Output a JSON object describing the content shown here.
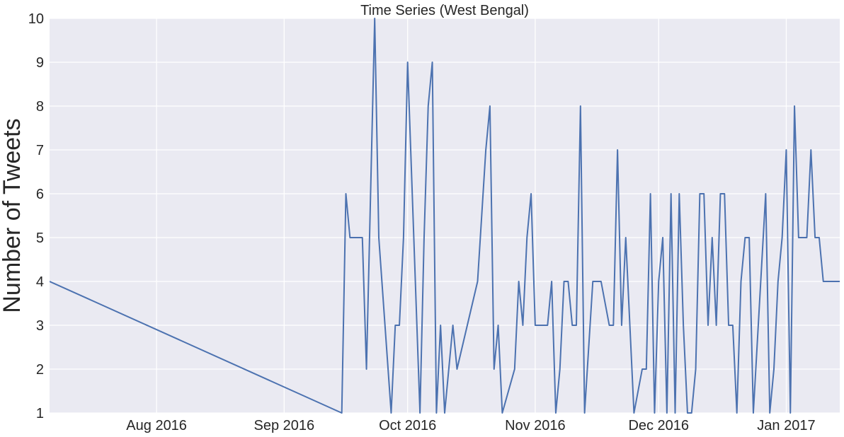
{
  "chart_data": {
    "type": "line",
    "title": "Time Series (West Bengal)",
    "xlabel": "",
    "ylabel": "Number of Tweets",
    "ylim": [
      1,
      10
    ],
    "xlim": [
      "2016-07-06",
      "2017-01-14"
    ],
    "y_ticks": [
      1,
      2,
      3,
      4,
      5,
      6,
      7,
      8,
      9,
      10
    ],
    "x_ticks": [
      {
        "date": "2016-08-01",
        "label": "Aug 2016"
      },
      {
        "date": "2016-09-01",
        "label": "Sep 2016"
      },
      {
        "date": "2016-10-01",
        "label": "Oct 2016"
      },
      {
        "date": "2016-11-01",
        "label": "Nov 2016"
      },
      {
        "date": "2016-12-01",
        "label": "Dec 2016"
      },
      {
        "date": "2017-01-01",
        "label": "Jan 2017"
      }
    ],
    "grid": true,
    "colors": {
      "line": "#4c72b0",
      "plot_bg": "#eaeaf2",
      "grid": "#ffffff"
    },
    "series": [
      {
        "x": [
          "2016-07-06",
          "2016-09-15",
          "2016-09-16",
          "2016-09-17",
          "2016-09-20",
          "2016-09-21",
          "2016-09-23",
          "2016-09-24",
          "2016-09-27",
          "2016-09-28",
          "2016-09-29",
          "2016-09-30",
          "2016-10-01",
          "2016-10-04",
          "2016-10-05",
          "2016-10-06",
          "2016-10-07",
          "2016-10-08",
          "2016-10-09",
          "2016-10-10",
          "2016-10-11",
          "2016-10-12",
          "2016-10-13",
          "2016-10-18",
          "2016-10-20",
          "2016-10-21",
          "2016-10-22",
          "2016-10-23",
          "2016-10-24",
          "2016-10-27",
          "2016-10-28",
          "2016-10-29",
          "2016-10-30",
          "2016-10-31",
          "2016-11-01",
          "2016-11-03",
          "2016-11-04",
          "2016-11-05",
          "2016-11-06",
          "2016-11-07",
          "2016-11-08",
          "2016-11-09",
          "2016-11-10",
          "2016-11-11",
          "2016-11-12",
          "2016-11-13",
          "2016-11-15",
          "2016-11-16",
          "2016-11-17",
          "2016-11-19",
          "2016-11-20",
          "2016-11-21",
          "2016-11-22",
          "2016-11-23",
          "2016-11-25",
          "2016-11-27",
          "2016-11-28",
          "2016-11-29",
          "2016-11-30",
          "2016-12-01",
          "2016-12-02",
          "2016-12-03",
          "2016-12-04",
          "2016-12-05",
          "2016-12-06",
          "2016-12-07",
          "2016-12-08",
          "2016-12-09",
          "2016-12-10",
          "2016-12-11",
          "2016-12-12",
          "2016-12-13",
          "2016-12-14",
          "2016-12-15",
          "2016-12-16",
          "2016-12-17",
          "2016-12-18",
          "2016-12-19",
          "2016-12-20",
          "2016-12-21",
          "2016-12-22",
          "2016-12-23",
          "2016-12-24",
          "2016-12-27",
          "2016-12-28",
          "2016-12-29",
          "2016-12-30",
          "2016-12-31",
          "2017-01-01",
          "2017-01-02",
          "2017-01-03",
          "2017-01-04",
          "2017-01-05",
          "2017-01-06",
          "2017-01-07",
          "2017-01-08",
          "2017-01-09",
          "2017-01-10",
          "2017-01-11",
          "2017-01-12",
          "2017-01-13",
          "2017-01-14"
        ],
        "values": [
          4,
          1,
          6,
          5,
          5,
          2,
          10,
          5,
          1,
          3,
          3,
          5,
          9,
          1,
          5,
          8,
          9,
          1,
          3,
          1,
          2,
          3,
          2,
          4,
          7,
          8,
          2,
          3,
          1,
          2,
          4,
          3,
          5,
          6,
          3,
          3,
          3,
          4,
          1,
          2,
          4,
          4,
          3,
          3,
          8,
          1,
          4,
          4,
          4,
          3,
          3,
          7,
          3,
          5,
          1,
          2,
          2,
          6,
          1,
          4,
          5,
          1,
          6,
          1,
          6,
          3,
          1,
          1,
          2,
          6,
          6,
          3,
          5,
          3,
          6,
          6,
          3,
          3,
          1,
          4,
          5,
          5,
          1,
          6,
          1,
          2,
          4,
          5,
          7,
          1,
          8,
          5,
          5,
          5,
          7,
          5,
          5,
          4,
          4,
          4,
          4,
          4
        ]
      }
    ]
  }
}
